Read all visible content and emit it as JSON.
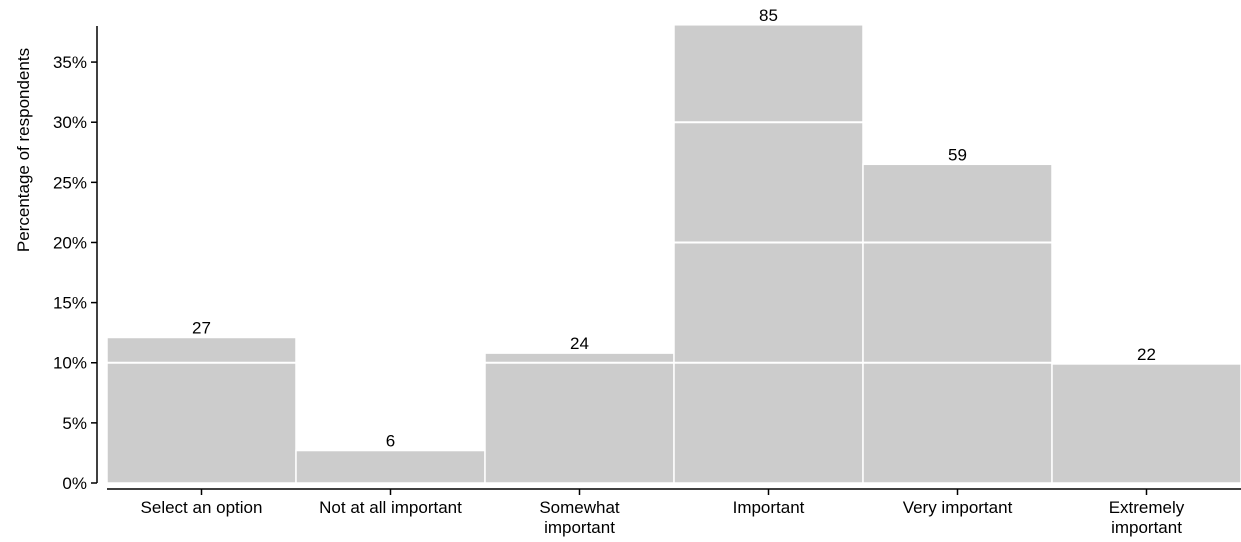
{
  "chart_data": {
    "type": "bar",
    "title": "",
    "xlabel": "",
    "ylabel": "Percentage of respondents",
    "categories": [
      [
        "Select an option"
      ],
      [
        "Not at all important"
      ],
      [
        "Somewhat",
        "important"
      ],
      [
        "Important"
      ],
      [
        "Very important"
      ],
      [
        "Extremely",
        "important"
      ]
    ],
    "values": [
      12.1,
      2.7,
      10.8,
      38.1,
      26.5,
      9.9
    ],
    "data_labels": [
      "27",
      "6",
      "24",
      "85",
      "59",
      "22"
    ],
    "ylim": [
      0,
      38
    ],
    "yticks": [
      0,
      5,
      10,
      15,
      20,
      25,
      30,
      35
    ],
    "ytick_labels": [
      "0%",
      "5%",
      "10%",
      "15%",
      "20%",
      "25%",
      "30%",
      "35%"
    ],
    "grid": "horizontal white lines at 10% intervals drawn over bars",
    "gridlines": [
      10,
      20,
      30
    ],
    "bar_color": "#cccccc",
    "grid_color": "#ffffff"
  }
}
